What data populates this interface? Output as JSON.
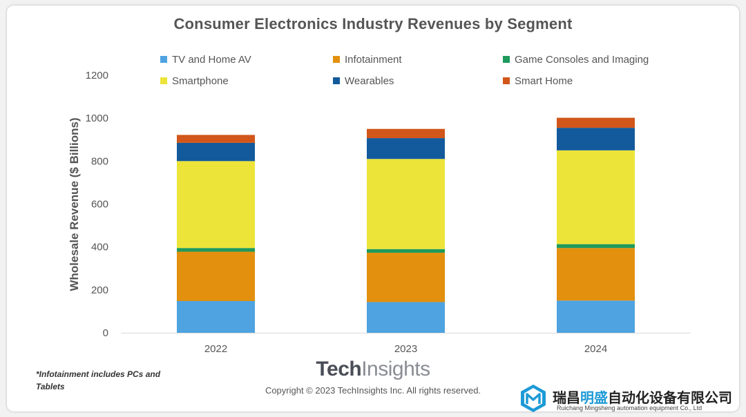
{
  "chart_data": {
    "type": "bar",
    "stacked": true,
    "title": "Consumer Electronics Industry Revenues by Segment",
    "xlabel": "",
    "ylabel": "Wholesale Revenue ($ Billions)",
    "ylim": [
      0,
      1200
    ],
    "yticks": [
      0,
      200,
      400,
      600,
      800,
      1000,
      1200
    ],
    "grid": false,
    "legend_position": "top",
    "categories": [
      "2022",
      "2023",
      "2024"
    ],
    "series": [
      {
        "name": "TV and Home AV",
        "color": "#4ea3e0",
        "values": [
          148,
          143,
          150
        ]
      },
      {
        "name": "Infotainment",
        "color": "#e2900e",
        "values": [
          230,
          230,
          245
        ]
      },
      {
        "name": "Game Consoles and Imaging",
        "color": "#1e9a5c",
        "values": [
          17,
          17,
          18
        ]
      },
      {
        "name": "Smartphone",
        "color": "#ede43a",
        "values": [
          405,
          420,
          437
        ]
      },
      {
        "name": "Wearables",
        "color": "#135a9c",
        "values": [
          85,
          97,
          105
        ]
      },
      {
        "name": "Smart Home",
        "color": "#d2561a",
        "values": [
          37,
          43,
          47
        ]
      }
    ],
    "legend_rows": [
      [
        "TV and Home AV",
        "Infotainment",
        "Game Consoles and Imaging"
      ],
      [
        "Smartphone",
        "Wearables",
        "Smart Home"
      ]
    ]
  },
  "footnote": "*Infotainment includes PCs and Tablets",
  "brand": {
    "bold": "Tech",
    "light": "Insights"
  },
  "copyright": "Copyright © 2023 TechInsights Inc.  All rights reserved.",
  "watermark": {
    "name_dark_1": "瑞昌",
    "name_blue": "明盛",
    "name_dark_2": "自动化设备有限公司",
    "subtitle": "Ruichang Mingsheng automation equipment Co., Ltd"
  }
}
